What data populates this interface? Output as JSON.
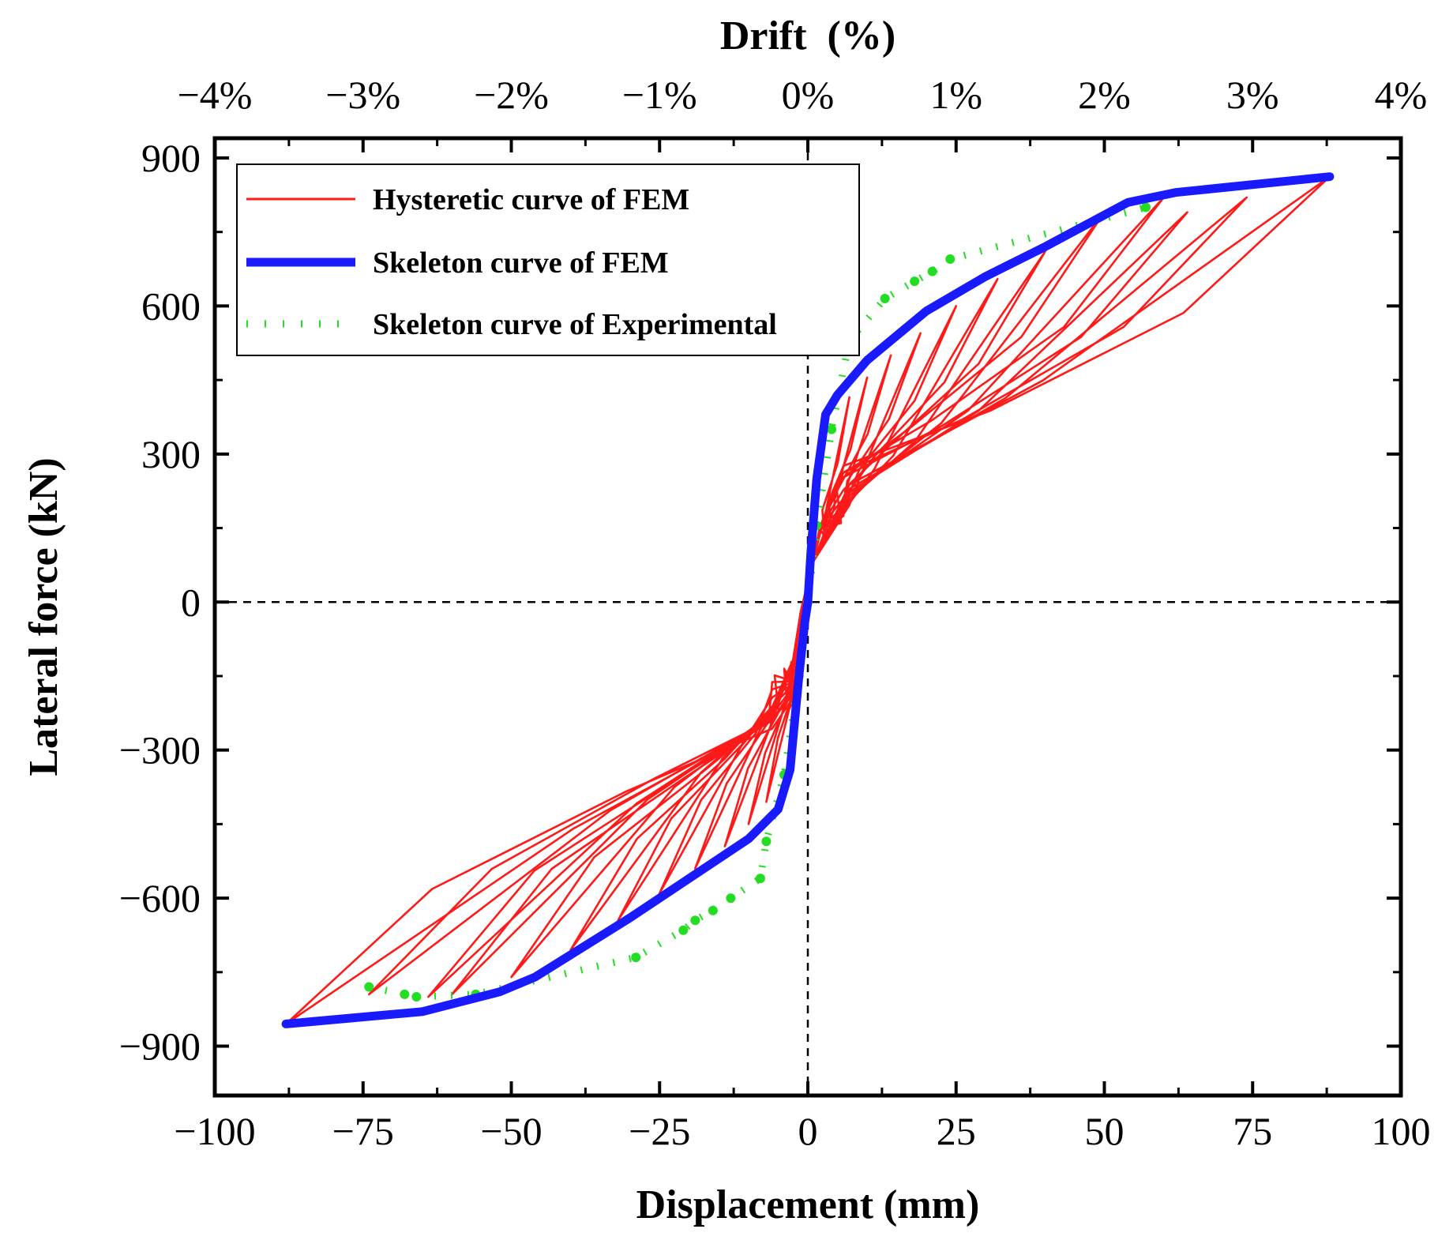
{
  "chart_data": {
    "type": "line",
    "title": "",
    "xlabel": "Displacement (mm)",
    "ylabel": "Lateral force (kN)",
    "top_xlabel": "Drift  (%)",
    "xlim": [
      -100,
      100
    ],
    "ylim": [
      -1000,
      940
    ],
    "x_ticks": [
      -100,
      -75,
      -50,
      -25,
      0,
      25,
      50,
      75,
      100
    ],
    "x_tick_labels": [
      "−100",
      "−75",
      "−50",
      "−25",
      "0",
      "25",
      "50",
      "75",
      "100"
    ],
    "y_ticks": [
      -900,
      -600,
      -300,
      0,
      300,
      600,
      900
    ],
    "y_tick_labels": [
      "−900",
      "−600",
      "−300",
      "0",
      "300",
      "600",
      "900"
    ],
    "top_ticks": [
      -4,
      -3,
      -2,
      -1,
      0,
      1,
      2,
      3,
      4
    ],
    "top_tick_labels": [
      "−4%",
      "−3%",
      "−2%",
      "−1%",
      "0%",
      "1%",
      "2%",
      "3%",
      "4%"
    ],
    "drift_per_mm_percent": 0.04,
    "reference_lines": {
      "x": 0,
      "y": 0,
      "style": "dashed"
    },
    "legend_position": "top-left",
    "series": [
      {
        "name": "Hysteretic curve of FEM",
        "color": "#ff1a1a",
        "style": "solid-thin",
        "loops": [
          {
            "amp": 7,
            "pos_peak": 415,
            "neg_peak": -405
          },
          {
            "amp": 10,
            "pos_peak": 455,
            "neg_peak": -450
          },
          {
            "amp": 14,
            "pos_peak": 500,
            "neg_peak": -495
          },
          {
            "amp": 19,
            "pos_peak": 545,
            "neg_peak": -540
          },
          {
            "amp": 25,
            "pos_peak": 600,
            "neg_peak": -590
          },
          {
            "amp": 32,
            "pos_peak": 655,
            "neg_peak": -645
          },
          {
            "amp": 40,
            "pos_peak": 710,
            "neg_peak": -705
          },
          {
            "amp": 50,
            "pos_peak": 790,
            "neg_peak": -760
          },
          {
            "amp": 60,
            "pos_peak": 820,
            "neg_peak": -795
          },
          {
            "amp": 64,
            "pos_peak": 790,
            "neg_peak": -800
          },
          {
            "amp": 74,
            "pos_peak": 820,
            "neg_peak": -795
          },
          {
            "amp": 88,
            "pos_peak": 862,
            "neg_peak": -855
          }
        ]
      },
      {
        "name": "Skeleton curve of FEM",
        "color": "#1a1aff",
        "style": "solid-thick",
        "x": [
          -88,
          -65,
          -52,
          -46,
          -38,
          -30,
          -20,
          -10,
          -5,
          -3,
          -1.5,
          -0.5,
          0,
          0.5,
          1.5,
          3,
          5,
          10,
          20,
          30,
          40,
          54,
          62,
          88
        ],
        "y": [
          -855,
          -830,
          -790,
          -760,
          -700,
          -640,
          -560,
          -480,
          -420,
          -340,
          -150,
          -40,
          0,
          100,
          250,
          380,
          420,
          490,
          590,
          660,
          720,
          810,
          830,
          862
        ]
      },
      {
        "name": "Skeleton curve of Experimental",
        "color": "#22dd22",
        "style": "dotted",
        "x": [
          -74,
          -68,
          -66,
          -56,
          -29,
          -21,
          -19,
          -16,
          -13,
          -8,
          -7,
          -4,
          -1.5,
          0,
          1.5,
          4,
          7,
          13,
          18,
          21,
          24,
          57
        ],
        "y": [
          -780,
          -795,
          -800,
          -795,
          -720,
          -665,
          -645,
          -625,
          -600,
          -560,
          -485,
          -350,
          -150,
          0,
          155,
          350,
          530,
          615,
          650,
          670,
          695,
          800
        ]
      }
    ]
  }
}
